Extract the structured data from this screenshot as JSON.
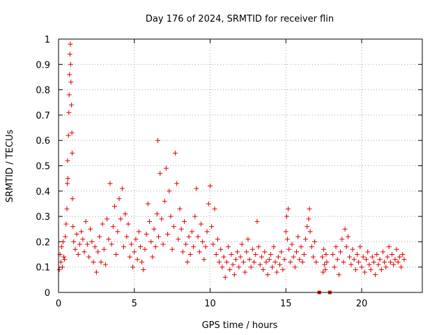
{
  "chart_data": {
    "type": "scatter",
    "title": "Day 176 of 2024, SRMTID for receiver flin",
    "xlabel": "GPS time / hours",
    "ylabel": "SRMTID / TECUs",
    "xlim": [
      0,
      24
    ],
    "ylim": [
      0,
      1
    ],
    "xticks": [
      0,
      5,
      10,
      15,
      20
    ],
    "xtick_labels": [
      "0",
      "5",
      "10",
      "15",
      "20"
    ],
    "yticks": [
      0,
      0.1,
      0.2,
      0.3,
      0.4,
      0.5,
      0.6,
      0.7,
      0.8,
      0.9,
      1
    ],
    "ytick_labels": [
      "0",
      "0.1",
      "0.2",
      "0.3",
      "0.4",
      "0.5",
      "0.6",
      "0.7",
      "0.8",
      "0.9",
      "1"
    ],
    "grid": true,
    "marker": "+",
    "color": "#e00000",
    "series": [
      {
        "name": "SRMTID",
        "points": [
          [
            0.05,
            0.09
          ],
          [
            0.1,
            0.15
          ],
          [
            0.15,
            0.12
          ],
          [
            0.2,
            0.18
          ],
          [
            0.25,
            0.1
          ],
          [
            0.3,
            0.2
          ],
          [
            0.35,
            0.14
          ],
          [
            0.4,
            0.13
          ],
          [
            0.45,
            0.22
          ],
          [
            0.5,
            0.27
          ],
          [
            0.55,
            0.33
          ],
          [
            0.58,
            0.43
          ],
          [
            0.6,
            0.52
          ],
          [
            0.62,
            0.45
          ],
          [
            0.65,
            0.62
          ],
          [
            0.68,
            0.71
          ],
          [
            0.7,
            0.78
          ],
          [
            0.72,
            0.86
          ],
          [
            0.75,
            0.94
          ],
          [
            0.78,
            0.98
          ],
          [
            0.8,
            0.9
          ],
          [
            0.82,
            0.83
          ],
          [
            0.85,
            0.74
          ],
          [
            0.88,
            0.63
          ],
          [
            0.9,
            0.55
          ],
          [
            0.92,
            0.37
          ],
          [
            0.95,
            0.26
          ],
          [
            1.0,
            0.2
          ],
          [
            1.1,
            0.17
          ],
          [
            1.2,
            0.23
          ],
          [
            1.3,
            0.15
          ],
          [
            1.4,
            0.19
          ],
          [
            1.5,
            0.24
          ],
          [
            1.6,
            0.21
          ],
          [
            1.7,
            0.16
          ],
          [
            1.8,
            0.28
          ],
          [
            1.9,
            0.19
          ],
          [
            2.0,
            0.14
          ],
          [
            2.1,
            0.25
          ],
          [
            2.2,
            0.2
          ],
          [
            2.3,
            0.12
          ],
          [
            2.4,
            0.18
          ],
          [
            2.5,
            0.08
          ],
          [
            2.6,
            0.16
          ],
          [
            2.7,
            0.22
          ],
          [
            2.8,
            0.12
          ],
          [
            2.9,
            0.27
          ],
          [
            3.0,
            0.17
          ],
          [
            3.1,
            0.11
          ],
          [
            3.2,
            0.29
          ],
          [
            3.3,
            0.21
          ],
          [
            3.4,
            0.43
          ],
          [
            3.5,
            0.19
          ],
          [
            3.6,
            0.26
          ],
          [
            3.7,
            0.34
          ],
          [
            3.8,
            0.15
          ],
          [
            3.9,
            0.24
          ],
          [
            4.0,
            0.37
          ],
          [
            4.1,
            0.29
          ],
          [
            4.2,
            0.41
          ],
          [
            4.3,
            0.18
          ],
          [
            4.4,
            0.31
          ],
          [
            4.5,
            0.22
          ],
          [
            4.6,
            0.27
          ],
          [
            4.7,
            0.14
          ],
          [
            4.8,
            0.19
          ],
          [
            4.9,
            0.1
          ],
          [
            5.0,
            0.16
          ],
          [
            5.1,
            0.21
          ],
          [
            5.2,
            0.13
          ],
          [
            5.3,
            0.24
          ],
          [
            5.4,
            0.18
          ],
          [
            5.5,
            0.12
          ],
          [
            5.6,
            0.09
          ],
          [
            5.7,
            0.17
          ],
          [
            5.8,
            0.23
          ],
          [
            5.9,
            0.35
          ],
          [
            6.0,
            0.28
          ],
          [
            6.1,
            0.2
          ],
          [
            6.2,
            0.14
          ],
          [
            6.3,
            0.25
          ],
          [
            6.4,
            0.18
          ],
          [
            6.5,
            0.31
          ],
          [
            6.55,
            0.6
          ],
          [
            6.6,
            0.22
          ],
          [
            6.7,
            0.47
          ],
          [
            6.8,
            0.29
          ],
          [
            6.9,
            0.19
          ],
          [
            7.0,
            0.36
          ],
          [
            7.1,
            0.49
          ],
          [
            7.2,
            0.23
          ],
          [
            7.3,
            0.4
          ],
          [
            7.4,
            0.3
          ],
          [
            7.5,
            0.17
          ],
          [
            7.6,
            0.26
          ],
          [
            7.7,
            0.55
          ],
          [
            7.8,
            0.43
          ],
          [
            7.9,
            0.21
          ],
          [
            8.0,
            0.33
          ],
          [
            8.1,
            0.25
          ],
          [
            8.2,
            0.16
          ],
          [
            8.3,
            0.28
          ],
          [
            8.4,
            0.19
          ],
          [
            8.5,
            0.12
          ],
          [
            8.6,
            0.22
          ],
          [
            8.7,
            0.15
          ],
          [
            8.8,
            0.24
          ],
          [
            8.9,
            0.18
          ],
          [
            9.0,
            0.3
          ],
          [
            9.1,
            0.41
          ],
          [
            9.2,
            0.22
          ],
          [
            9.3,
            0.16
          ],
          [
            9.4,
            0.27
          ],
          [
            9.5,
            0.2
          ],
          [
            9.6,
            0.13
          ],
          [
            9.7,
            0.18
          ],
          [
            9.8,
            0.24
          ],
          [
            9.9,
            0.35
          ],
          [
            10.0,
            0.42
          ],
          [
            10.1,
            0.26
          ],
          [
            10.2,
            0.19
          ],
          [
            10.3,
            0.33
          ],
          [
            10.4,
            0.15
          ],
          [
            10.5,
            0.21
          ],
          [
            10.6,
            0.12
          ],
          [
            10.7,
            0.17
          ],
          [
            10.8,
            0.1
          ],
          [
            10.9,
            0.14
          ],
          [
            11.0,
            0.06
          ],
          [
            11.1,
            0.12
          ],
          [
            11.2,
            0.18
          ],
          [
            11.3,
            0.09
          ],
          [
            11.4,
            0.15
          ],
          [
            11.5,
            0.11
          ],
          [
            11.6,
            0.07
          ],
          [
            11.7,
            0.13
          ],
          [
            11.8,
            0.16
          ],
          [
            11.9,
            0.1
          ],
          [
            12.0,
            0.14
          ],
          [
            12.1,
            0.19
          ],
          [
            12.2,
            0.12
          ],
          [
            12.3,
            0.08
          ],
          [
            12.4,
            0.16
          ],
          [
            12.5,
            0.21
          ],
          [
            12.6,
            0.13
          ],
          [
            12.7,
            0.1
          ],
          [
            12.8,
            0.17
          ],
          [
            12.9,
            0.12
          ],
          [
            13.0,
            0.15
          ],
          [
            13.1,
            0.28
          ],
          [
            13.2,
            0.18
          ],
          [
            13.3,
            0.11
          ],
          [
            13.4,
            0.14
          ],
          [
            13.5,
            0.09
          ],
          [
            13.6,
            0.16
          ],
          [
            13.7,
            0.12
          ],
          [
            13.8,
            0.07
          ],
          [
            13.9,
            0.13
          ],
          [
            14.0,
            0.15
          ],
          [
            14.1,
            0.1
          ],
          [
            14.2,
            0.18
          ],
          [
            14.3,
            0.12
          ],
          [
            14.4,
            0.08
          ],
          [
            14.5,
            0.14
          ],
          [
            14.6,
            0.11
          ],
          [
            14.7,
            0.16
          ],
          [
            14.8,
            0.09
          ],
          [
            14.9,
            0.13
          ],
          [
            15.0,
            0.24
          ],
          [
            15.05,
            0.3
          ],
          [
            15.1,
            0.21
          ],
          [
            15.15,
            0.33
          ],
          [
            15.2,
            0.17
          ],
          [
            15.3,
            0.12
          ],
          [
            15.4,
            0.19
          ],
          [
            15.5,
            0.14
          ],
          [
            15.6,
            0.1
          ],
          [
            15.7,
            0.16
          ],
          [
            15.8,
            0.22
          ],
          [
            15.9,
            0.13
          ],
          [
            16.0,
            0.18
          ],
          [
            16.1,
            0.12
          ],
          [
            16.2,
            0.15
          ],
          [
            16.3,
            0.21
          ],
          [
            16.4,
            0.26
          ],
          [
            16.5,
            0.29
          ],
          [
            16.55,
            0.33
          ],
          [
            16.6,
            0.24
          ],
          [
            16.7,
            0.18
          ],
          [
            16.8,
            0.14
          ],
          [
            16.9,
            0.2
          ],
          [
            17.0,
            0.12
          ],
          [
            17.4,
            0.14
          ],
          [
            17.45,
            0.08
          ],
          [
            17.5,
            0.17
          ],
          [
            17.55,
            0.11
          ],
          [
            17.6,
            0.09
          ],
          [
            17.65,
            0.15
          ],
          [
            17.7,
            0.12
          ],
          [
            18.1,
            0.15
          ],
          [
            18.2,
            0.1
          ],
          [
            18.3,
            0.18
          ],
          [
            18.4,
            0.13
          ],
          [
            18.5,
            0.07
          ],
          [
            18.6,
            0.16
          ],
          [
            18.7,
            0.21
          ],
          [
            18.8,
            0.12
          ],
          [
            18.9,
            0.25
          ],
          [
            19.0,
            0.18
          ],
          [
            19.1,
            0.22
          ],
          [
            19.2,
            0.14
          ],
          [
            19.3,
            0.11
          ],
          [
            19.4,
            0.17
          ],
          [
            19.5,
            0.13
          ],
          [
            19.6,
            0.09
          ],
          [
            19.7,
            0.15
          ],
          [
            19.8,
            0.12
          ],
          [
            19.9,
            0.18
          ],
          [
            20.0,
            0.1
          ],
          [
            20.1,
            0.14
          ],
          [
            20.2,
            0.08
          ],
          [
            20.3,
            0.13
          ],
          [
            20.4,
            0.16
          ],
          [
            20.5,
            0.11
          ],
          [
            20.6,
            0.09
          ],
          [
            20.7,
            0.14
          ],
          [
            20.8,
            0.12
          ],
          [
            20.9,
            0.07
          ],
          [
            21.0,
            0.15
          ],
          [
            21.1,
            0.11
          ],
          [
            21.2,
            0.13
          ],
          [
            21.3,
            0.09
          ],
          [
            21.4,
            0.16
          ],
          [
            21.5,
            0.12
          ],
          [
            21.6,
            0.1
          ],
          [
            21.7,
            0.14
          ],
          [
            21.8,
            0.18
          ],
          [
            21.9,
            0.12
          ],
          [
            22.0,
            0.15
          ],
          [
            22.1,
            0.11
          ],
          [
            22.2,
            0.13
          ],
          [
            22.3,
            0.17
          ],
          [
            22.4,
            0.12
          ],
          [
            22.5,
            0.14
          ],
          [
            22.6,
            0.1
          ],
          [
            22.7,
            0.15
          ],
          [
            22.8,
            0.13
          ]
        ]
      }
    ],
    "zero_markers": [
      17.2,
      17.9
    ]
  }
}
